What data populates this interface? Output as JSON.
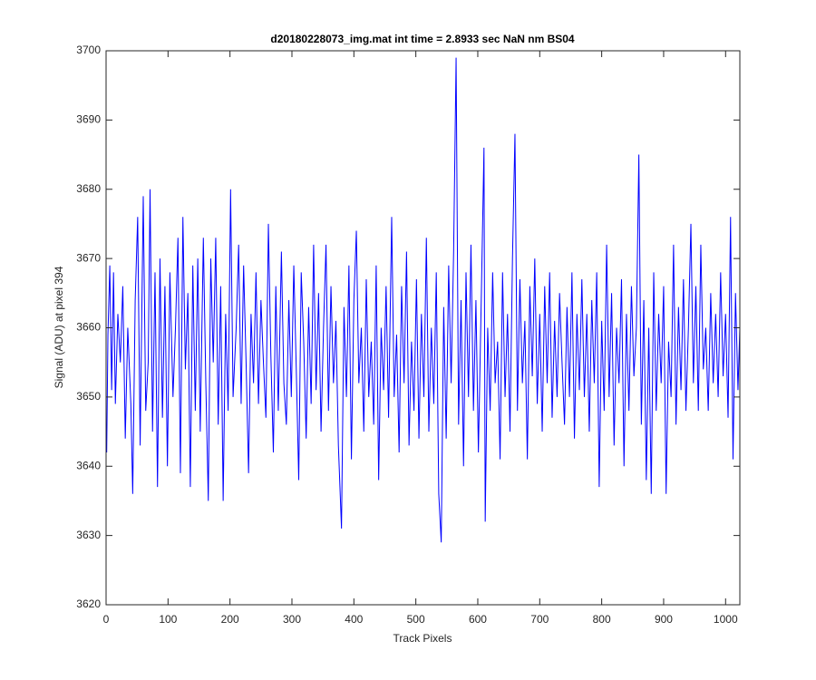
{
  "chart_data": {
    "type": "line",
    "title": "d20180228073_img.mat int time = 2.8933 sec  NaN nm BS04",
    "x_label": "Track Pixels",
    "y_label": "Signal (ADU) at pixel 394",
    "xlim": [
      0,
      1023
    ],
    "ylim": [
      3620,
      3700
    ],
    "xticks": [
      0,
      100,
      200,
      300,
      400,
      500,
      600,
      700,
      800,
      900,
      1000
    ],
    "yticks": [
      3620,
      3630,
      3640,
      3650,
      3660,
      3670,
      3680,
      3690,
      3700
    ],
    "x": [
      1,
      3,
      6,
      9,
      12,
      15,
      19,
      23,
      27,
      31,
      35,
      40,
      43,
      47,
      51,
      55,
      60,
      64,
      68,
      71,
      75,
      79,
      83,
      87,
      91,
      95,
      99,
      103,
      108,
      112,
      116,
      120,
      124,
      128,
      132,
      136,
      140,
      144,
      148,
      152,
      157,
      161,
      165,
      169,
      173,
      177,
      181,
      185,
      189,
      193,
      197,
      201,
      205,
      210,
      214,
      218,
      222,
      226,
      230,
      234,
      238,
      242,
      246,
      250,
      254,
      258,
      262,
      266,
      270,
      274,
      278,
      283,
      287,
      291,
      295,
      299,
      303,
      307,
      311,
      315,
      319,
      323,
      327,
      331,
      335,
      339,
      343,
      347,
      351,
      355,
      359,
      363,
      367,
      371,
      375,
      380,
      384,
      388,
      392,
      396,
      400,
      404,
      408,
      412,
      416,
      420,
      424,
      428,
      432,
      436,
      440,
      444,
      448,
      452,
      456,
      461,
      465,
      469,
      473,
      477,
      481,
      485,
      489,
      493,
      497,
      501,
      505,
      509,
      513,
      517,
      521,
      525,
      529,
      533,
      537,
      541,
      545,
      549,
      553,
      557,
      561,
      565,
      569,
      573,
      577,
      581,
      585,
      589,
      593,
      597,
      601,
      606,
      610,
      612,
      616,
      620,
      624,
      628,
      632,
      636,
      640,
      644,
      648,
      652,
      656,
      660,
      664,
      668,
      672,
      676,
      680,
      684,
      688,
      692,
      696,
      700,
      704,
      708,
      712,
      716,
      720,
      724,
      728,
      732,
      736,
      740,
      744,
      748,
      752,
      756,
      760,
      764,
      768,
      772,
      776,
      780,
      784,
      788,
      792,
      796,
      800,
      804,
      808,
      812,
      816,
      820,
      824,
      828,
      832,
      836,
      840,
      844,
      848,
      852,
      856,
      860,
      864,
      868,
      872,
      876,
      880,
      884,
      888,
      892,
      896,
      900,
      904,
      908,
      912,
      916,
      920,
      924,
      928,
      932,
      936,
      940,
      944,
      948,
      952,
      956,
      960,
      964,
      968,
      972,
      976,
      980,
      984,
      988,
      992,
      996,
      1000,
      1004,
      1008,
      1012,
      1016,
      1020,
      1023
    ],
    "series": [
      {
        "color": "#0000ff",
        "values": [
          3642,
          3659,
          3669,
          3651,
          3668,
          3649,
          3662,
          3655,
          3666,
          3644,
          3660,
          3649,
          3636,
          3664,
          3676,
          3643,
          3679,
          3648,
          3655,
          3680,
          3645,
          3668,
          3637,
          3670,
          3647,
          3666,
          3640,
          3668,
          3650,
          3660,
          3673,
          3639,
          3676,
          3654,
          3665,
          3637,
          3669,
          3648,
          3670,
          3645,
          3673,
          3652,
          3635,
          3670,
          3655,
          3673,
          3646,
          3666,
          3635,
          3662,
          3648,
          3680,
          3650,
          3660,
          3672,
          3649,
          3669,
          3655,
          3639,
          3662,
          3652,
          3668,
          3649,
          3664,
          3655,
          3647,
          3675,
          3656,
          3642,
          3666,
          3648,
          3671,
          3652,
          3646,
          3664,
          3650,
          3669,
          3654,
          3638,
          3668,
          3658,
          3644,
          3663,
          3649,
          3672,
          3651,
          3665,
          3645,
          3660,
          3672,
          3648,
          3666,
          3652,
          3661,
          3643,
          3631,
          3663,
          3650,
          3669,
          3641,
          3664,
          3674,
          3652,
          3660,
          3645,
          3667,
          3650,
          3658,
          3646,
          3669,
          3638,
          3660,
          3651,
          3666,
          3647,
          3676,
          3650,
          3659,
          3642,
          3666,
          3652,
          3671,
          3643,
          3658,
          3648,
          3667,
          3644,
          3662,
          3650,
          3673,
          3645,
          3660,
          3649,
          3668,
          3636,
          3629,
          3663,
          3644,
          3669,
          3652,
          3671,
          3699,
          3646,
          3664,
          3640,
          3668,
          3650,
          3672,
          3648,
          3664,
          3642,
          3666,
          3686,
          3632,
          3660,
          3648,
          3668,
          3652,
          3658,
          3641,
          3668,
          3650,
          3662,
          3645,
          3670,
          3688,
          3648,
          3667,
          3652,
          3661,
          3641,
          3666,
          3653,
          3670,
          3649,
          3662,
          3645,
          3666,
          3652,
          3668,
          3647,
          3661,
          3650,
          3665,
          3655,
          3646,
          3663,
          3650,
          3668,
          3644,
          3662,
          3651,
          3667,
          3650,
          3662,
          3645,
          3664,
          3652,
          3668,
          3637,
          3661,
          3648,
          3672,
          3650,
          3665,
          3643,
          3660,
          3652,
          3667,
          3640,
          3662,
          3648,
          3666,
          3653,
          3660,
          3685,
          3646,
          3664,
          3638,
          3660,
          3636,
          3668,
          3648,
          3662,
          3652,
          3666,
          3636,
          3658,
          3650,
          3672,
          3646,
          3663,
          3651,
          3667,
          3648,
          3660,
          3675,
          3652,
          3666,
          3648,
          3672,
          3654,
          3660,
          3648,
          3665,
          3652,
          3662,
          3650,
          3668,
          3653,
          3662,
          3647,
          3676,
          3641,
          3665,
          3651,
          3660
        ]
      }
    ]
  }
}
